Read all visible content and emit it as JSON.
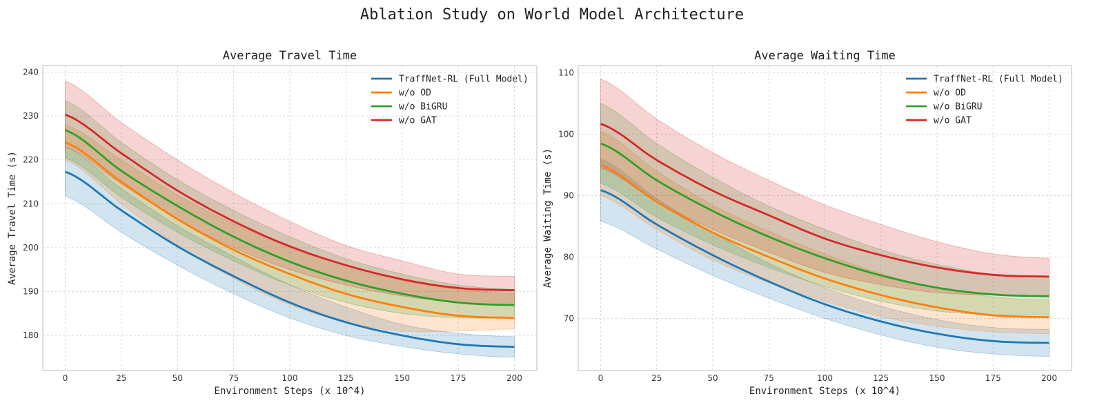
{
  "figure_title": "Ablation Study on World Model Architecture",
  "legend_labels": [
    "TraffNet-RL (Full Model)",
    "w/o OD",
    "w/o BiGRU",
    "w/o GAT"
  ],
  "colors": {
    "full": "#1f77b4",
    "wo_od": "#ff7f0e",
    "wo_bigru": "#2ca02c",
    "wo_gat": "#d62728"
  },
  "chart_data": [
    {
      "type": "line",
      "title": "Average Travel Time",
      "xlabel": "Environment Steps (x 10^4)",
      "ylabel": "Average Travel Time (s)",
      "xlim": [
        -10,
        210
      ],
      "ylim": [
        172,
        241.5
      ],
      "xticks": [
        0,
        25,
        50,
        75,
        100,
        125,
        150,
        175,
        200
      ],
      "yticks": [
        180,
        190,
        200,
        210,
        220,
        230,
        240
      ],
      "grid": true,
      "legend_position": "top-right",
      "x": [
        0,
        25,
        50,
        75,
        100,
        125,
        150,
        175,
        200
      ],
      "series": [
        {
          "name": "TraffNet-RL (Full Model)",
          "color": "#1f77b4",
          "values": [
            217.3,
            208.5,
            200.3,
            193.5,
            187.5,
            183.0,
            180.0,
            178.0,
            177.4
          ],
          "lower": [
            211.7,
            203.5,
            196.0,
            189.5,
            184.0,
            180.0,
            177.5,
            175.8,
            175.0
          ],
          "upper": [
            223.0,
            213.5,
            205.0,
            198.0,
            191.5,
            186.5,
            182.5,
            180.5,
            179.7
          ]
        },
        {
          "name": "w/o OD",
          "color": "#ff7f0e",
          "values": [
            224.0,
            215.0,
            206.5,
            199.5,
            194.0,
            189.5,
            186.5,
            184.5,
            184.0
          ],
          "lower": [
            220.0,
            210.0,
            200.5,
            193.0,
            187.0,
            183.0,
            181.0,
            181.0,
            181.5
          ],
          "upper": [
            228.0,
            220.0,
            212.0,
            205.5,
            200.0,
            195.5,
            192.5,
            190.5,
            189.5
          ]
        },
        {
          "name": "w/o BiGRU",
          "color": "#2ca02c",
          "values": [
            226.8,
            217.5,
            209.5,
            202.5,
            196.8,
            192.5,
            189.5,
            187.5,
            186.9
          ],
          "lower": [
            220.5,
            211.5,
            203.5,
            197.0,
            191.5,
            187.5,
            185.0,
            184.0,
            184.0
          ],
          "upper": [
            233.5,
            224.0,
            215.5,
            208.5,
            202.5,
            197.5,
            194.0,
            191.5,
            190.5
          ]
        },
        {
          "name": "w/o GAT",
          "color": "#d62728",
          "values": [
            230.3,
            221.5,
            213.0,
            206.0,
            200.3,
            196.0,
            192.8,
            190.8,
            190.3
          ],
          "lower": [
            223.0,
            214.5,
            206.5,
            200.0,
            195.0,
            191.5,
            189.0,
            187.5,
            187.0
          ],
          "upper": [
            238.0,
            228.5,
            220.0,
            212.5,
            206.0,
            200.5,
            197.0,
            194.0,
            193.5
          ]
        }
      ]
    },
    {
      "type": "line",
      "title": "Average Waiting Time",
      "xlabel": "Environment Steps (x 10^4)",
      "ylabel": "Average Waiting Time (s)",
      "xlim": [
        -10,
        210
      ],
      "ylim": [
        61.5,
        111.2
      ],
      "xticks": [
        0,
        25,
        50,
        75,
        100,
        125,
        150,
        175,
        200
      ],
      "yticks": [
        70,
        80,
        90,
        100,
        110
      ],
      "grid": true,
      "legend_position": "top-right",
      "x": [
        0,
        25,
        50,
        75,
        100,
        125,
        150,
        175,
        200
      ],
      "series": [
        {
          "name": "TraffNet-RL (Full Model)",
          "color": "#1f77b4",
          "values": [
            90.9,
            85.3,
            80.3,
            76.0,
            72.3,
            69.5,
            67.5,
            66.3,
            66.0
          ],
          "lower": [
            85.8,
            81.3,
            77.0,
            73.3,
            70.0,
            67.3,
            65.3,
            64.2,
            63.8
          ],
          "upper": [
            96.0,
            89.5,
            84.0,
            79.0,
            75.0,
            72.0,
            69.8,
            68.5,
            68.2
          ]
        },
        {
          "name": "w/o OD",
          "color": "#ff7f0e",
          "values": [
            95.0,
            89.0,
            84.0,
            80.0,
            76.5,
            73.8,
            71.8,
            70.5,
            70.2
          ],
          "lower": [
            90.0,
            84.5,
            79.5,
            75.8,
            72.8,
            70.3,
            68.7,
            67.8,
            67.5
          ],
          "upper": [
            100.5,
            94.0,
            88.5,
            84.2,
            80.5,
            77.3,
            75.0,
            73.5,
            73.0
          ]
        },
        {
          "name": "w/o BiGRU",
          "color": "#2ca02c",
          "values": [
            98.5,
            92.5,
            87.5,
            83.3,
            79.8,
            77.0,
            75.0,
            73.9,
            73.6
          ],
          "lower": [
            92.0,
            86.5,
            82.0,
            78.3,
            75.2,
            72.8,
            71.2,
            70.6,
            70.5
          ],
          "upper": [
            105.0,
            98.5,
            93.0,
            88.3,
            84.5,
            81.2,
            78.8,
            77.2,
            76.7
          ]
        },
        {
          "name": "w/o GAT",
          "color": "#d62728",
          "values": [
            101.7,
            95.8,
            90.8,
            86.8,
            83.0,
            80.3,
            78.3,
            77.1,
            76.8
          ],
          "lower": [
            94.5,
            89.0,
            84.5,
            80.8,
            77.5,
            75.5,
            74.2,
            73.8,
            73.7
          ],
          "upper": [
            109.0,
            102.5,
            97.0,
            92.5,
            88.5,
            85.3,
            82.5,
            80.5,
            79.8
          ]
        }
      ]
    }
  ]
}
